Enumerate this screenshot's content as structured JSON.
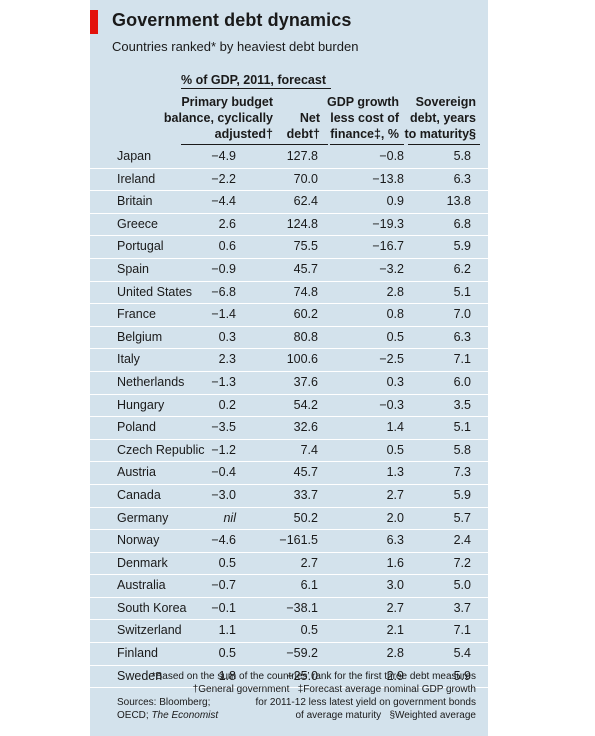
{
  "chart_data": {
    "type": "table",
    "title": "Government debt dynamics",
    "subtitle": "Countries ranked* by heaviest debt burden",
    "group_header": "% of GDP, 2011, forecast",
    "columns": [
      {
        "key": "country",
        "label": ""
      },
      {
        "key": "primary_balance",
        "label_lines": [
          "Primary budget",
          "balance, cyclically",
          "adjusted†"
        ]
      },
      {
        "key": "net_debt",
        "label_lines": [
          "Net",
          "debt†"
        ]
      },
      {
        "key": "gdp_growth_less_cost",
        "label_lines": [
          "GDP growth",
          "less cost of",
          "finance‡, %"
        ]
      },
      {
        "key": "debt_maturity",
        "label_lines": [
          "Sovereign",
          "debt, years",
          "to maturity§"
        ]
      }
    ],
    "rows": [
      [
        "Japan",
        "-4.9",
        "127.8",
        "-0.8",
        "5.8"
      ],
      [
        "Ireland",
        "-2.2",
        "70.0",
        "-13.8",
        "6.3"
      ],
      [
        "Britain",
        "-4.4",
        "62.4",
        "0.9",
        "13.8"
      ],
      [
        "Greece",
        "2.6",
        "124.8",
        "-19.3",
        "6.8"
      ],
      [
        "Portugal",
        "0.6",
        "75.5",
        "-16.7",
        "5.9"
      ],
      [
        "Spain",
        "-0.9",
        "45.7",
        "-3.2",
        "6.2"
      ],
      [
        "United States",
        "-6.8",
        "74.8",
        "2.8",
        "5.1"
      ],
      [
        "France",
        "-1.4",
        "60.2",
        "0.8",
        "7.0"
      ],
      [
        "Belgium",
        "0.3",
        "80.8",
        "0.5",
        "6.3"
      ],
      [
        "Italy",
        "2.3",
        "100.6",
        "-2.5",
        "7.1"
      ],
      [
        "Netherlands",
        "-1.3",
        "37.6",
        "0.3",
        "6.0"
      ],
      [
        "Hungary",
        "0.2",
        "54.2",
        "-0.3",
        "3.5"
      ],
      [
        "Poland",
        "-3.5",
        "32.6",
        "1.4",
        "5.1"
      ],
      [
        "Czech Republic",
        "-1.2",
        "7.4",
        "0.5",
        "5.8"
      ],
      [
        "Austria",
        "-0.4",
        "45.7",
        "1.3",
        "7.3"
      ],
      [
        "Canada",
        "-3.0",
        "33.7",
        "2.7",
        "5.9"
      ],
      [
        "Germany",
        "nil",
        "50.2",
        "2.0",
        "5.7"
      ],
      [
        "Norway",
        "-4.6",
        "-161.5",
        "6.3",
        "2.4"
      ],
      [
        "Denmark",
        "0.5",
        "2.7",
        "1.6",
        "7.2"
      ],
      [
        "Australia",
        "-0.7",
        "6.1",
        "3.0",
        "5.0"
      ],
      [
        "South Korea",
        "-0.1",
        "-38.1",
        "2.7",
        "3.7"
      ],
      [
        "Switzerland",
        "1.1",
        "0.5",
        "2.1",
        "7.1"
      ],
      [
        "Finland",
        "0.5",
        "-59.2",
        "2.8",
        "5.4"
      ],
      [
        "Sweden",
        "1.8",
        "-25.0",
        "2.9",
        "5.9"
      ]
    ]
  },
  "footnotes": {
    "star": "*Based on the sum of the countries’ rank for the first three debt measures",
    "dagger": "†General government",
    "ddagger_1": "‡Forecast average nominal GDP growth",
    "ddagger_2": "for 2011-12 less latest yield on government bonds",
    "ddagger_3": "of average maturity",
    "section": "§Weighted average",
    "sources_1": "Sources: Bloomberg;",
    "sources_2": "OECD;",
    "sources_3": "The Economist"
  },
  "colors": {
    "panel": "#d3e2ec",
    "accent": "#e3120b",
    "row_divider": "#ffffff"
  }
}
